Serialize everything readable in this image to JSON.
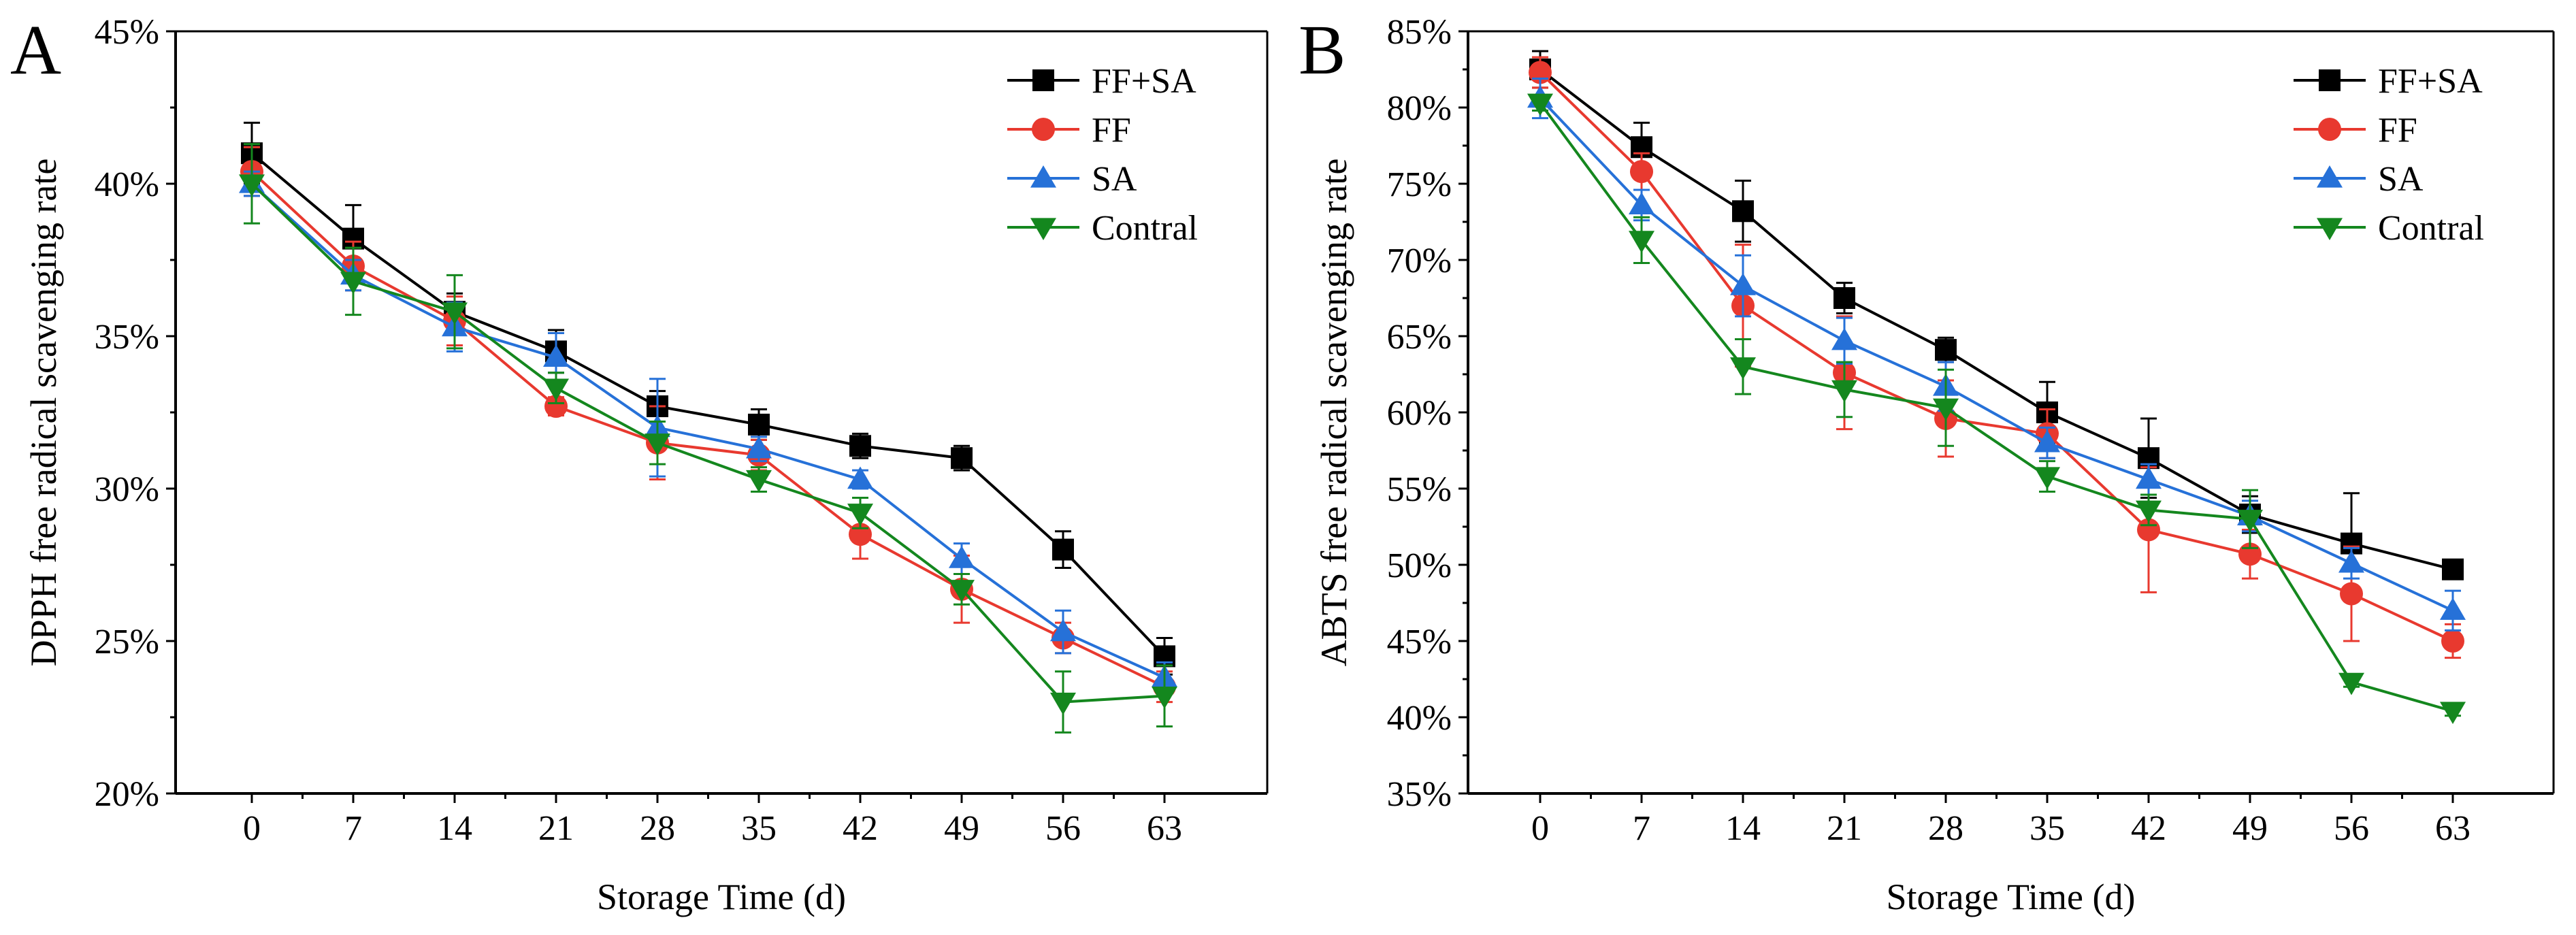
{
  "chart_data": [
    {
      "type": "line",
      "panel_label": "A",
      "title": "",
      "xlabel": "Storage Time (d)",
      "ylabel": "DPPH free radical scavenging rate",
      "x": [
        0,
        7,
        14,
        21,
        28,
        35,
        42,
        49,
        56,
        63
      ],
      "x_tick_labels": [
        "0",
        "7",
        "14",
        "21",
        "28",
        "35",
        "42",
        "49",
        "56",
        "63"
      ],
      "ylim": [
        20,
        45
      ],
      "y_ticks": [
        20,
        25,
        30,
        35,
        40,
        45
      ],
      "y_tick_labels": [
        "20%",
        "25%",
        "30%",
        "35%",
        "40%",
        "45%"
      ],
      "legend_position": "top-right",
      "series": [
        {
          "name": "FF+SA",
          "color": "#000000",
          "marker": "square",
          "values": [
            41.0,
            38.2,
            35.8,
            34.5,
            32.7,
            32.1,
            31.4,
            31.0,
            28.0,
            24.5
          ],
          "errors": [
            1.0,
            1.1,
            0.6,
            0.7,
            0.5,
            0.5,
            0.4,
            0.4,
            0.6,
            0.6
          ]
        },
        {
          "name": "FF",
          "color": "#e8392f",
          "marker": "circle",
          "values": [
            40.4,
            37.3,
            35.5,
            32.7,
            31.5,
            31.1,
            28.5,
            26.7,
            25.1,
            23.5
          ],
          "errors": [
            0.8,
            0.8,
            0.8,
            0.3,
            1.2,
            0.5,
            0.8,
            1.1,
            0.5,
            0.5
          ]
        },
        {
          "name": "SA",
          "color": "#2671d8",
          "marker": "triangle-up",
          "values": [
            40.0,
            37.0,
            35.3,
            34.3,
            32.0,
            31.3,
            30.3,
            27.7,
            25.3,
            23.8
          ],
          "errors": [
            0.4,
            0.5,
            0.8,
            0.8,
            1.6,
            0.4,
            0.3,
            0.5,
            0.7,
            0.5
          ]
        },
        {
          "name": "Contral",
          "color": "#14871e",
          "marker": "triangle-down",
          "values": [
            40.0,
            36.8,
            35.8,
            33.3,
            31.5,
            30.3,
            29.2,
            26.7,
            23.0,
            23.2
          ],
          "errors": [
            1.3,
            1.1,
            1.2,
            0.5,
            0.7,
            0.4,
            0.5,
            0.5,
            1.0,
            1.0
          ]
        }
      ]
    },
    {
      "type": "line",
      "panel_label": "B",
      "title": "",
      "xlabel": "Storage Time (d)",
      "ylabel": "ABTS free radical scavenging rate",
      "x": [
        0,
        7,
        14,
        21,
        28,
        35,
        42,
        49,
        56,
        63
      ],
      "x_tick_labels": [
        "0",
        "7",
        "14",
        "21",
        "28",
        "35",
        "42",
        "49",
        "56",
        "63"
      ],
      "ylim": [
        35,
        85
      ],
      "y_ticks": [
        35,
        40,
        45,
        50,
        55,
        60,
        65,
        70,
        75,
        80,
        85
      ],
      "y_tick_labels": [
        "35%",
        "40%",
        "45%",
        "50%",
        "55%",
        "60%",
        "65%",
        "70%",
        "75%",
        "80%",
        "85%"
      ],
      "legend_position": "top-right",
      "series": [
        {
          "name": "FF+SA",
          "color": "#000000",
          "marker": "square",
          "values": [
            82.5,
            77.4,
            73.2,
            67.5,
            64.1,
            60.0,
            57.0,
            53.3,
            51.4,
            49.7
          ],
          "errors": [
            1.2,
            1.6,
            2.0,
            1.0,
            0.8,
            2.0,
            2.6,
            1.2,
            3.3,
            0.5
          ]
        },
        {
          "name": "FF",
          "color": "#e8392f",
          "marker": "circle",
          "values": [
            82.3,
            75.8,
            67.0,
            62.6,
            59.6,
            58.6,
            52.3,
            50.7,
            48.1,
            45.0
          ],
          "errors": [
            1.0,
            1.2,
            4.0,
            3.7,
            2.5,
            1.6,
            4.1,
            1.6,
            3.1,
            1.1
          ]
        },
        {
          "name": "SA",
          "color": "#2671d8",
          "marker": "triangle-up",
          "values": [
            80.6,
            73.6,
            68.3,
            64.7,
            61.7,
            58.0,
            55.6,
            53.2,
            50.1,
            47.0
          ],
          "errors": [
            1.3,
            1.0,
            2.0,
            1.5,
            1.6,
            1.0,
            1.0,
            1.0,
            1.0,
            1.3
          ]
        },
        {
          "name": "Contral",
          "color": "#14871e",
          "marker": "triangle-down",
          "values": [
            80.3,
            71.3,
            63.0,
            61.5,
            60.3,
            55.8,
            53.6,
            53.0,
            42.3,
            40.4
          ],
          "errors": [
            0.5,
            1.5,
            1.8,
            1.8,
            2.5,
            1.0,
            1.0,
            1.9,
            0.3,
            0.3
          ]
        }
      ]
    }
  ]
}
